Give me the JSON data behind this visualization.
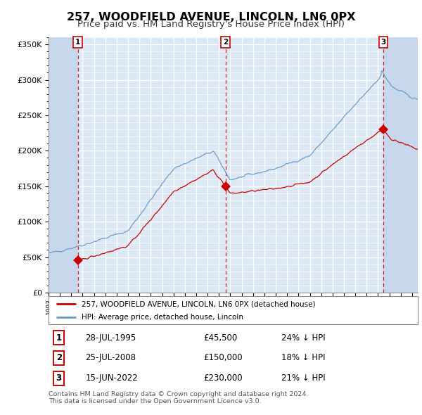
{
  "title": "257, WOODFIELD AVENUE, LINCOLN, LN6 0PX",
  "subtitle": "Price paid vs. HM Land Registry's House Price Index (HPI)",
  "title_fontsize": 11.5,
  "subtitle_fontsize": 9.5,
  "bg_color": "#dce9f5",
  "hatch_color": "#c8d8ec",
  "grid_color": "#ffffff",
  "red_line_color": "#cc0000",
  "blue_line_color": "#6699cc",
  "purchases": [
    {
      "label": "1",
      "date": "28-JUL-1995",
      "price": 45500,
      "pct": "24%",
      "year": 1995.583,
      "y": 45500
    },
    {
      "label": "2",
      "date": "25-JUL-2008",
      "price": 150000,
      "pct": "18%",
      "year": 2008.583,
      "y": 150000
    },
    {
      "label": "3",
      "date": "15-JUN-2022",
      "price": 230000,
      "pct": "21%",
      "year": 2022.458,
      "y": 230000
    }
  ],
  "legend_label_red": "257, WOODFIELD AVENUE, LINCOLN, LN6 0PX (detached house)",
  "legend_label_blue": "HPI: Average price, detached house, Lincoln",
  "footer": "Contains HM Land Registry data © Crown copyright and database right 2024.\nThis data is licensed under the Open Government Licence v3.0.",
  "ylim": [
    0,
    360000
  ],
  "xstart": 1993.0,
  "xend": 2025.5
}
